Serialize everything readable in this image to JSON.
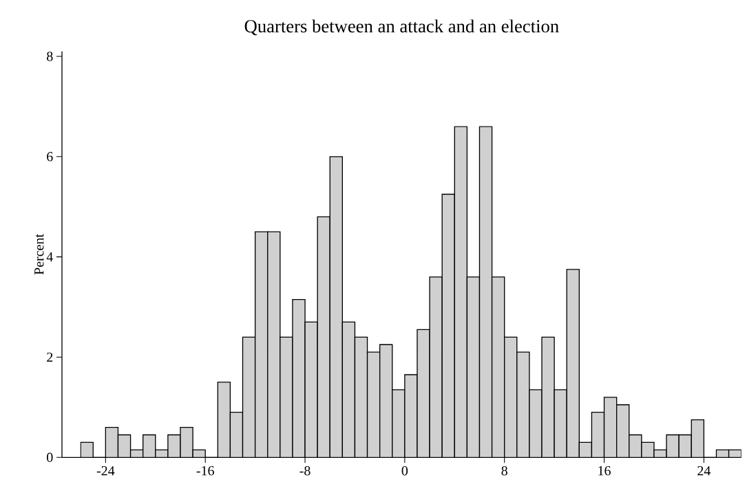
{
  "chart_data": {
    "type": "histogram",
    "title": "Quarters between an attack and an election",
    "ylabel": "Percent",
    "bins": [
      -26,
      -25,
      -24,
      -23,
      -22,
      -21,
      -20,
      -19,
      -18,
      -17,
      -16,
      -15,
      -14,
      -13,
      -12,
      -11,
      -10,
      -9,
      -8,
      -7,
      -6,
      -5,
      -4,
      -3,
      -2,
      -1,
      0,
      1,
      2,
      3,
      4,
      5,
      6,
      7,
      8,
      9,
      10,
      11,
      12,
      13,
      14,
      15,
      16,
      17,
      18,
      19,
      20,
      21,
      22,
      23,
      24,
      25,
      26,
      27
    ],
    "values": [
      0.3,
      0,
      0.6,
      0.45,
      0.15,
      0.45,
      0.15,
      0.45,
      0.6,
      0.15,
      0,
      1.5,
      0.9,
      2.4,
      4.5,
      4.5,
      2.4,
      3.15,
      2.7,
      4.8,
      6.0,
      2.7,
      2.4,
      2.1,
      2.25,
      1.35,
      1.65,
      2.55,
      3.6,
      5.25,
      6.6,
      3.6,
      6.6,
      3.6,
      2.4,
      2.1,
      1.35,
      2.4,
      1.35,
      3.75,
      0.3,
      0.9,
      1.2,
      1.05,
      0.45,
      0.3,
      0.15,
      0.45,
      0.45,
      0.75,
      0,
      0.15,
      0.15
    ],
    "color": "#d0d0d0",
    "xlim": [
      -27.5,
      27
    ],
    "ylim": [
      0,
      8.1
    ],
    "xticks": [
      -24,
      -16,
      -8,
      0,
      8,
      16,
      24
    ],
    "yticks": [
      0,
      2,
      4,
      6,
      8
    ]
  }
}
